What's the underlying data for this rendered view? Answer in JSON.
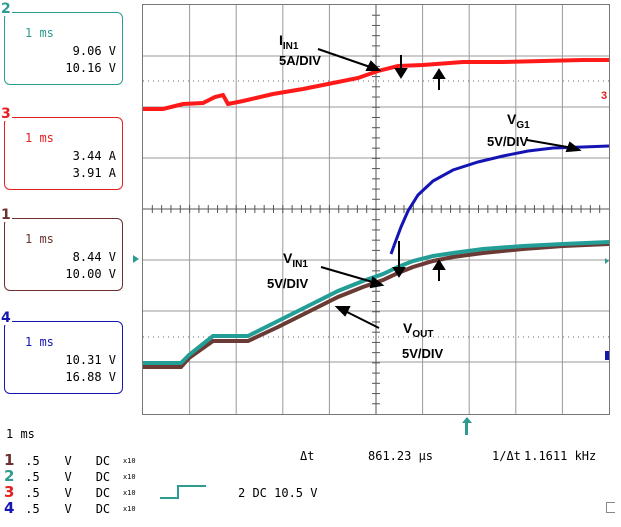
{
  "channels": [
    {
      "num": "2",
      "time": "1 ms",
      "v1": "9.06 V",
      "v2": "10.16 V",
      "color": "#2e9b8f"
    },
    {
      "num": "3",
      "time": "1 ms",
      "v1": "3.44 A",
      "v2": "3.91 A",
      "color": "#e62020"
    },
    {
      "num": "1",
      "time": "1 ms",
      "v1": "8.44 V",
      "v2": "10.00 V",
      "color": "#6b3030"
    },
    {
      "num": "4",
      "time": "1 ms",
      "v1": "10.31 V",
      "v2": "16.88 V",
      "color": "#1616b0"
    }
  ],
  "annotations": {
    "iin1_main": "I",
    "iin1_sub": "IN1",
    "iin1_scale": "5A/DIV",
    "vg1_main": "V",
    "vg1_sub": "G1",
    "vg1_scale": "5V/DIV",
    "vin1_main": "V",
    "vin1_sub": "IN1",
    "vin1_scale": "5V/DIV",
    "vout_main": "V",
    "vout_sub": "OUT",
    "vout_scale": "5V/DIV"
  },
  "status": {
    "timebase": "1 ms",
    "delta_t_label": "Δt",
    "delta_t_value": "861.23 µs",
    "inv_delta_t_label": "1/Δt",
    "inv_delta_t_value": "1.1611 kHz",
    "trigger": "2 DC 10.5 V"
  },
  "settings": [
    {
      "ch": "1",
      "volts": ".5",
      "unit": "V",
      "coupling": "DC",
      "probe": "x10"
    },
    {
      "ch": "2",
      "volts": ".5",
      "unit": "V",
      "coupling": "DC",
      "probe": "x10"
    },
    {
      "ch": "3",
      "volts": ".5",
      "unit": "V",
      "coupling": "DC",
      "probe": "x10"
    },
    {
      "ch": "4",
      "volts": ".5",
      "unit": "V",
      "coupling": "DC",
      "probe": "x10"
    }
  ],
  "colors": {
    "iin1": "#ff1a1a",
    "vg1": "#1414b4",
    "vin1": "#239e96",
    "vout": "#6b3a34"
  }
}
